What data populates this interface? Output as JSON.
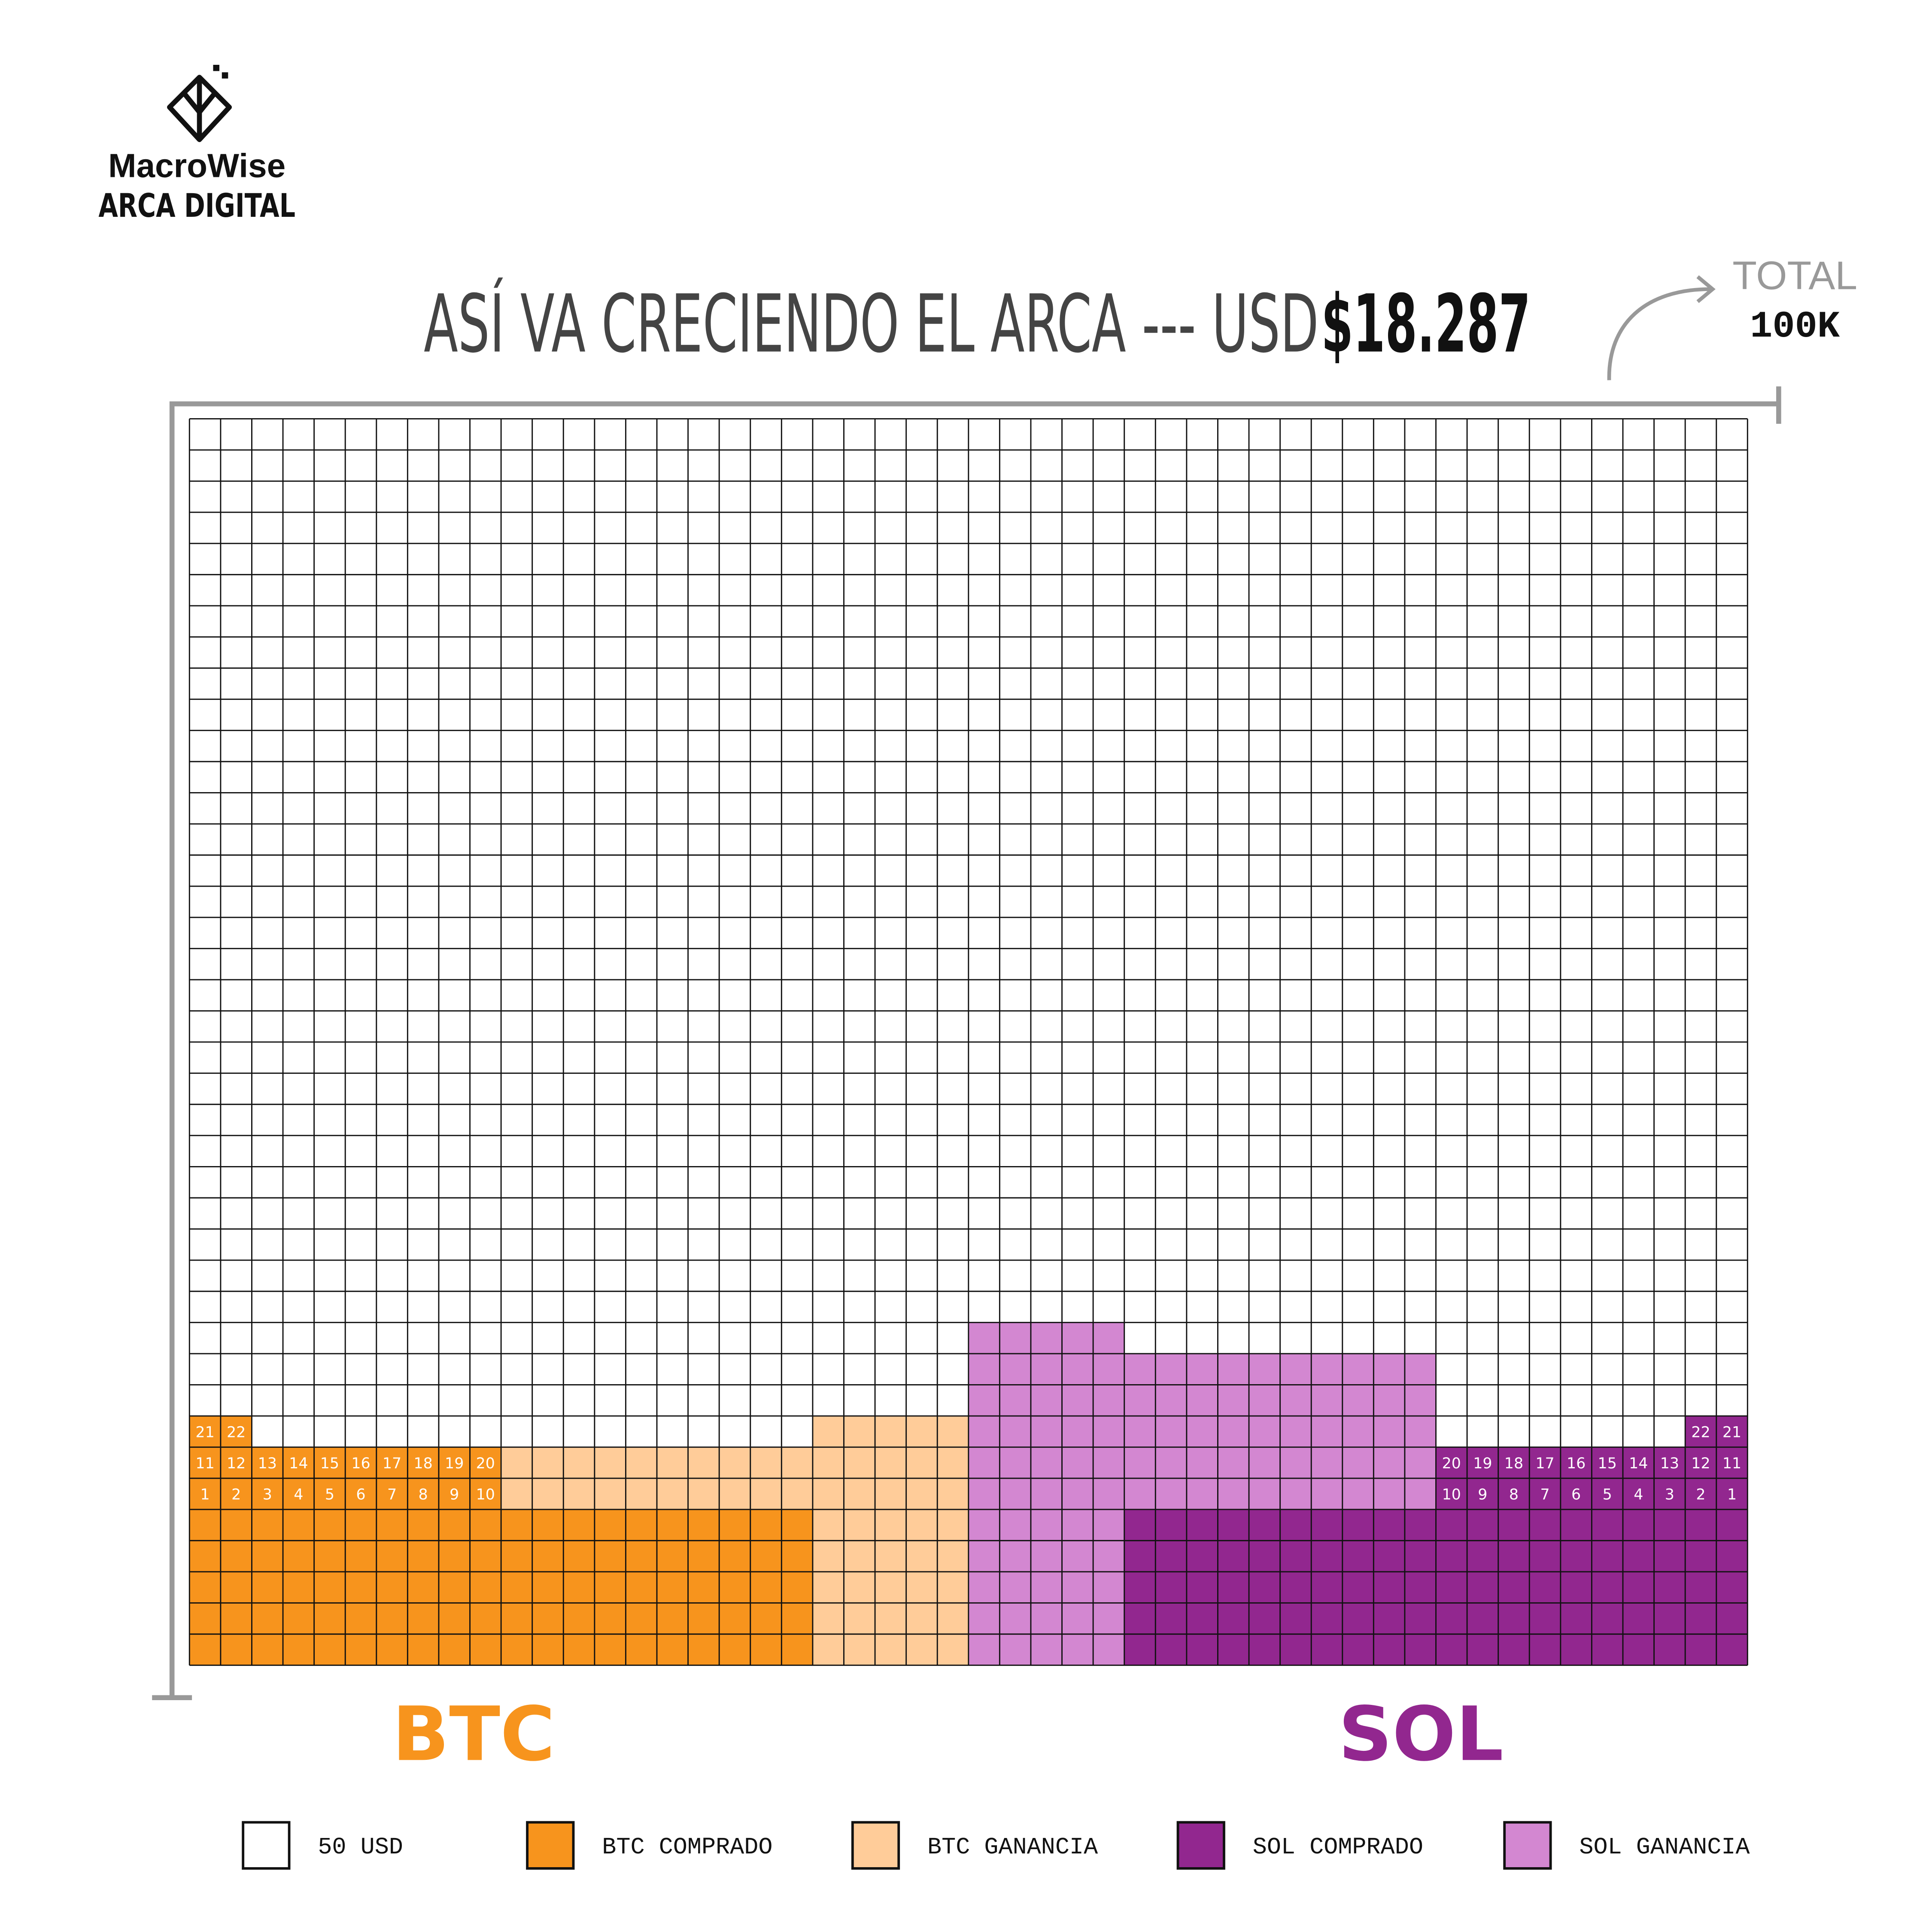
{
  "logo": {
    "name": "MacroWise",
    "subtitle": "ARCA DIGITAL"
  },
  "title": {
    "text": "ASÍ VA CRECIENDO EL ARCA --- USD",
    "amount": "$18.287"
  },
  "total": {
    "label": "TOTAL",
    "value": "100K"
  },
  "chart_data": {
    "type": "waffle",
    "grid": {
      "columns": 50,
      "rows": 40
    },
    "empty": {
      "name": "50 USD",
      "color": "#ffffff"
    },
    "series": [
      {
        "name": "BTC COMPRADO",
        "color": "#F7941D",
        "values": [
          8,
          8,
          7,
          7,
          7,
          7,
          7,
          7,
          7,
          7,
          5,
          5,
          5,
          5,
          5,
          5,
          5,
          5,
          5,
          5,
          0,
          0,
          0,
          0,
          0,
          0,
          0,
          0,
          0,
          0,
          0,
          0,
          0,
          0,
          0,
          0,
          0,
          0,
          0,
          0,
          0,
          0,
          0,
          0,
          0,
          0,
          0,
          0,
          0,
          0
        ]
      },
      {
        "name": "BTC GANANCIA",
        "color": "#FFCC99",
        "values": [
          0,
          0,
          0,
          0,
          0,
          0,
          0,
          0,
          0,
          0,
          2,
          2,
          2,
          2,
          2,
          2,
          2,
          2,
          2,
          2,
          8,
          8,
          8,
          8,
          8,
          0,
          0,
          0,
          0,
          0,
          0,
          0,
          0,
          0,
          0,
          0,
          0,
          0,
          0,
          0,
          0,
          0,
          0,
          0,
          0,
          0,
          0,
          0,
          0,
          0
        ]
      },
      {
        "name": "SOL COMPRADO",
        "color": "#92278F",
        "values": [
          0,
          0,
          0,
          0,
          0,
          0,
          0,
          0,
          0,
          0,
          0,
          0,
          0,
          0,
          0,
          0,
          0,
          0,
          0,
          0,
          0,
          0,
          0,
          0,
          0,
          0,
          0,
          0,
          0,
          0,
          5,
          5,
          5,
          5,
          5,
          5,
          5,
          5,
          5,
          5,
          7,
          7,
          7,
          7,
          7,
          7,
          7,
          7,
          8,
          8
        ]
      },
      {
        "name": "SOL GANANCIA",
        "color": "#D387D1",
        "values": [
          0,
          0,
          0,
          0,
          0,
          0,
          0,
          0,
          0,
          0,
          0,
          0,
          0,
          0,
          0,
          0,
          0,
          0,
          0,
          0,
          0,
          0,
          0,
          0,
          0,
          11,
          11,
          11,
          11,
          11,
          5,
          5,
          5,
          5,
          5,
          5,
          5,
          5,
          5,
          5,
          0,
          0,
          0,
          0,
          0,
          0,
          0,
          0,
          0,
          0
        ]
      }
    ],
    "groups": [
      {
        "name": "BTC",
        "color": "#F7941D",
        "start": "left",
        "labels": [
          1,
          2,
          3,
          4,
          5,
          6,
          7,
          8,
          9,
          10,
          11,
          12,
          13,
          14,
          15,
          16,
          17,
          18,
          19,
          20,
          21,
          22
        ]
      },
      {
        "name": "SOL",
        "color": "#92278F",
        "start": "right",
        "labels": [
          1,
          2,
          3,
          4,
          5,
          6,
          7,
          8,
          9,
          10,
          11,
          12,
          13,
          14,
          15,
          16,
          17,
          18,
          19,
          20,
          21,
          22
        ]
      }
    ]
  }
}
